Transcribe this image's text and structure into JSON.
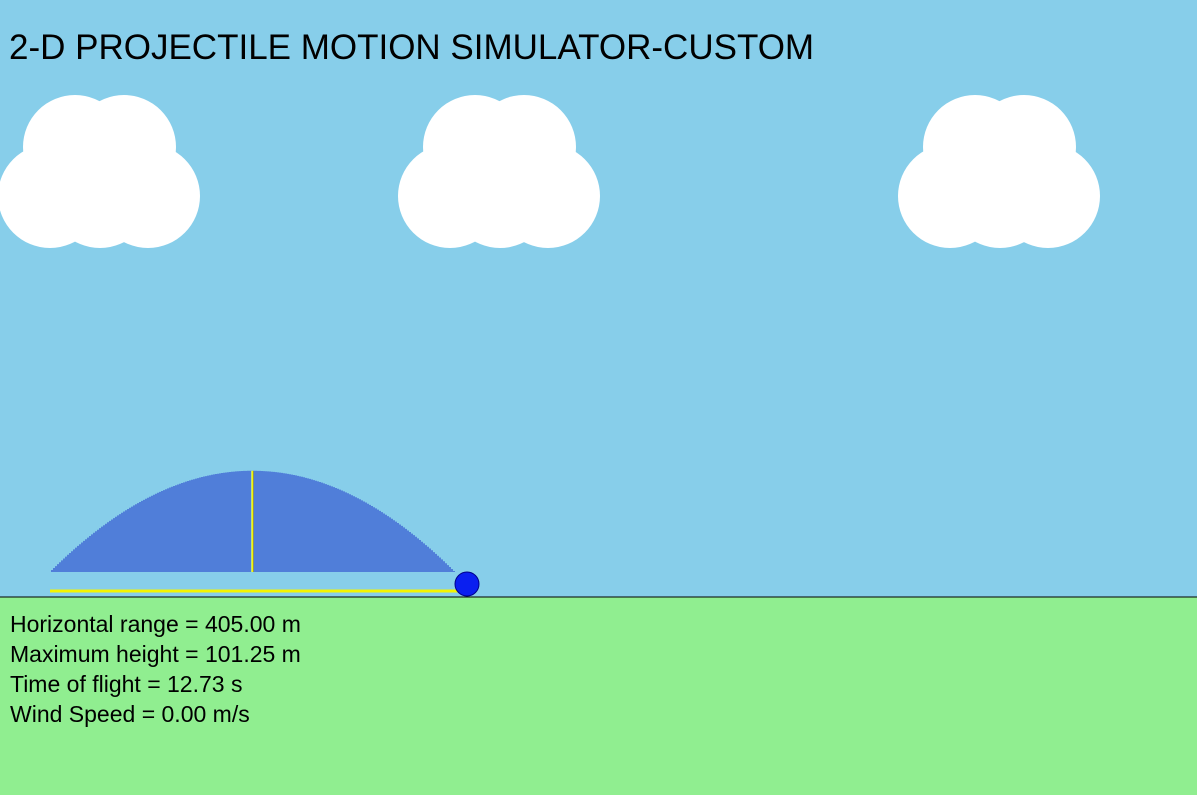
{
  "title": "2-D PROJECTILE MOTION SIMULATOR-CUSTOM",
  "colors": {
    "sky": "#87ceea",
    "ground": "#90ee90",
    "cloud": "#ffffff",
    "trail": "#1a2fc8",
    "marker": "#f4f400",
    "projectile": "#0a1ff0",
    "projectile_outline": "#00008b",
    "horizon": "#000000"
  },
  "icons": {
    "cloud": "cloud-icon",
    "projectile": "ball-icon"
  },
  "simulation": {
    "horizontal_range_m": 405.0,
    "maximum_height_m": 101.25,
    "time_of_flight_s": 12.73,
    "wind_speed_mps": 0.0
  },
  "stats": {
    "range": "Horizontal range = 405.00 m",
    "height": "Maximum height = 101.25 m",
    "time": "Time of flight = 12.73 s",
    "wind": "Wind Speed = 0.00 m/s"
  }
}
